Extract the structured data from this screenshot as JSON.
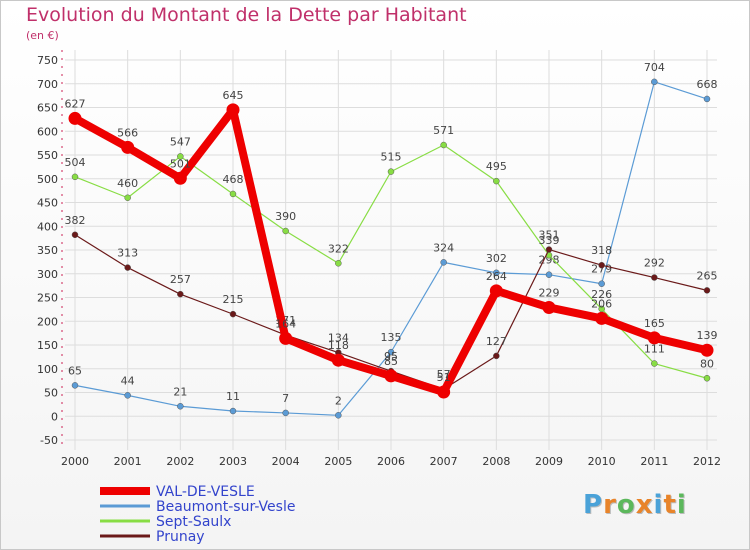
{
  "title": "Evolution du Montant de la Dette par Habitant",
  "subtitle": "(en €)",
  "logo": {
    "text": "Proxiti",
    "colors": [
      "#4aa2d8",
      "#e8842a",
      "#5cb85c",
      "#e8842a",
      "#4aa2d8",
      "#e8842a",
      "#5cb85c"
    ]
  },
  "chart_data": {
    "type": "line",
    "title": "Evolution du Montant de la Dette par Habitant",
    "ylabel": "(en €)",
    "xlabel": "",
    "ylim": [
      -50,
      750
    ],
    "ytick_step": 50,
    "grid": true,
    "x": [
      "2000",
      "2001",
      "2002",
      "2003",
      "2004",
      "2005",
      "2006",
      "2007",
      "2008",
      "2009",
      "2010",
      "2011",
      "2012"
    ],
    "series": [
      {
        "name": "VAL-DE-VESLE",
        "color": "#ee0000",
        "bold": true,
        "values": [
          627,
          566,
          501,
          645,
          164,
          118,
          85,
          51,
          264,
          229,
          206,
          165,
          139
        ],
        "labels": [
          "627",
          "566",
          "501",
          "645",
          "164",
          "118",
          "85",
          "51",
          "264",
          "229",
          "206",
          "165",
          "139"
        ]
      },
      {
        "name": "Beaumont-sur-Vesle",
        "color": "#5b9bd5",
        "bold": false,
        "values": [
          65,
          44,
          21,
          11,
          7,
          2,
          135,
          324,
          302,
          298,
          279,
          704,
          668
        ],
        "labels": [
          "65",
          "44",
          "21",
          "11",
          "7",
          "2",
          "135",
          "324",
          "302",
          "298",
          "279",
          "704",
          "668"
        ]
      },
      {
        "name": "Sept-Saulx",
        "color": "#88dd44",
        "bold": false,
        "values": [
          504,
          460,
          547,
          468,
          390,
          322,
          515,
          571,
          495,
          339,
          226,
          111,
          80
        ],
        "labels": [
          "504",
          "460",
          "547",
          "468",
          "390",
          "322",
          "515",
          "571",
          "495",
          "339",
          "226",
          "111",
          "80"
        ]
      },
      {
        "name": "Prunay",
        "color": "#6b1a1a",
        "bold": false,
        "values": [
          382,
          313,
          257,
          215,
          171,
          134,
          95,
          57,
          127,
          351,
          318,
          292,
          265
        ],
        "labels": [
          "382",
          "313",
          "257",
          "215",
          "171",
          "134",
          "95",
          "57",
          "127",
          "351",
          "318",
          "292",
          "265"
        ]
      }
    ]
  }
}
